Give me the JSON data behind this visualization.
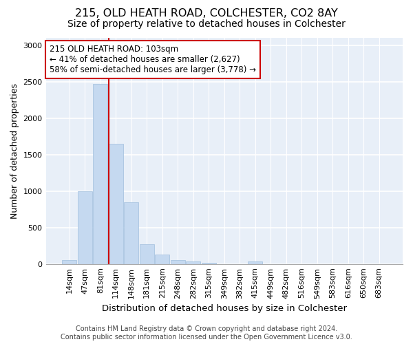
{
  "title1": "215, OLD HEATH ROAD, COLCHESTER, CO2 8AY",
  "title2": "Size of property relative to detached houses in Colchester",
  "xlabel": "Distribution of detached houses by size in Colchester",
  "ylabel": "Number of detached properties",
  "categories": [
    "14sqm",
    "47sqm",
    "81sqm",
    "114sqm",
    "148sqm",
    "181sqm",
    "215sqm",
    "248sqm",
    "282sqm",
    "315sqm",
    "349sqm",
    "382sqm",
    "415sqm",
    "449sqm",
    "482sqm",
    "516sqm",
    "549sqm",
    "583sqm",
    "616sqm",
    "650sqm",
    "683sqm"
  ],
  "values": [
    55,
    1000,
    2470,
    1650,
    850,
    270,
    130,
    55,
    35,
    20,
    0,
    0,
    35,
    0,
    0,
    0,
    0,
    0,
    0,
    0,
    0
  ],
  "bar_color": "#c5d9f0",
  "bar_edge_color": "#a0bedd",
  "vline_color": "#cc0000",
  "annotation_text": "215 OLD HEATH ROAD: 103sqm\n← 41% of detached houses are smaller (2,627)\n58% of semi-detached houses are larger (3,778) →",
  "annotation_box_color": "#ffffff",
  "annotation_border_color": "#cc0000",
  "ylim": [
    0,
    3100
  ],
  "yticks": [
    0,
    500,
    1000,
    1500,
    2000,
    2500,
    3000
  ],
  "footer": "Contains HM Land Registry data © Crown copyright and database right 2024.\nContains public sector information licensed under the Open Government Licence v3.0.",
  "bg_color": "#e8eff8",
  "title1_fontsize": 11.5,
  "title2_fontsize": 10,
  "xlabel_fontsize": 9.5,
  "ylabel_fontsize": 9,
  "tick_fontsize": 8,
  "annotation_fontsize": 8.5,
  "footer_fontsize": 7
}
